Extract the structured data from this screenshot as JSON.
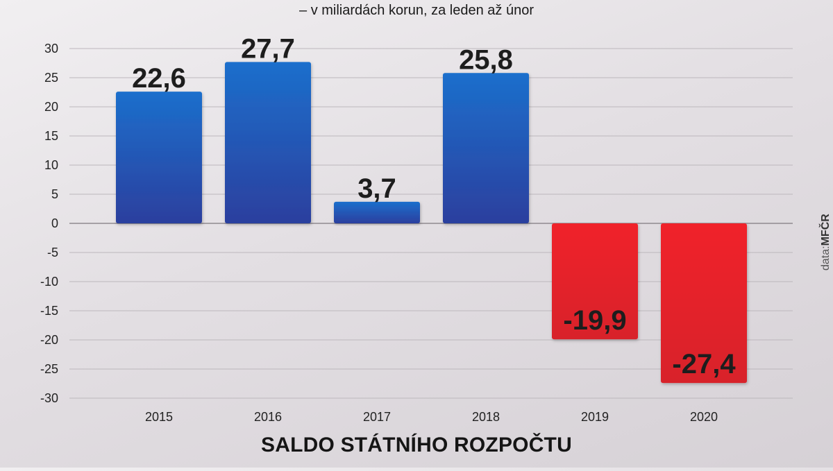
{
  "subtitle": "– v miliardách korun, za leden až únor",
  "title": "SALDO STÁTNÍHO ROZPOČTU",
  "source": {
    "prefix": "data:",
    "name": "MFČR"
  },
  "colors": {
    "positive": "#1f5fc4",
    "negative": "#e3232c",
    "grid": "#bcb7bc"
  },
  "chart_data": {
    "type": "bar",
    "categories": [
      "2015",
      "2016",
      "2017",
      "2018",
      "2019",
      "2020"
    ],
    "values": [
      22.6,
      27.7,
      3.7,
      25.8,
      -19.9,
      -27.4
    ],
    "value_labels": [
      "22,6",
      "27,7",
      "3,7",
      "25,8",
      "-19,9",
      "-27,4"
    ],
    "yticks": [
      30,
      25,
      20,
      15,
      10,
      5,
      0,
      -5,
      -10,
      -15,
      -20,
      -25,
      -30
    ],
    "ytick_labels": [
      "30",
      "25",
      "20",
      "15",
      "10",
      "5",
      "0",
      "-5",
      "-10",
      "-15",
      "-20",
      "-25",
      "-30"
    ],
    "ylim": [
      -30,
      30
    ],
    "grid": true
  }
}
